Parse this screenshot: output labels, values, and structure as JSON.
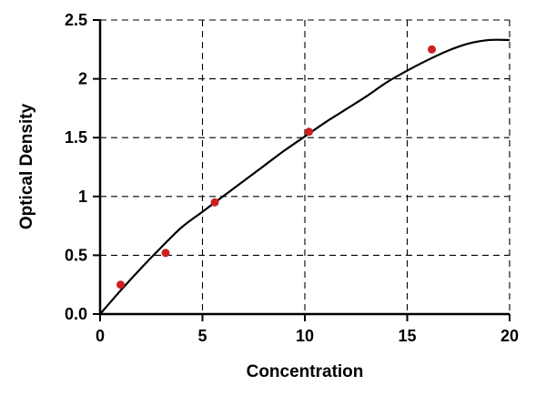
{
  "chart_data": {
    "type": "scatter",
    "title": "",
    "xlabel": "Concentration",
    "ylabel": "Optical Density",
    "xlim": [
      0,
      20
    ],
    "ylim": [
      0,
      2.5
    ],
    "grid": true,
    "grid_style": "dashed",
    "x_tick_values": [
      0,
      5,
      10,
      15,
      20
    ],
    "x_tick_labels": [
      "0",
      "5",
      "10",
      "15",
      "20"
    ],
    "y_tick_values": [
      0,
      0.5,
      1,
      1.5,
      2,
      2.5
    ],
    "y_tick_labels": [
      "0.0",
      "0.5",
      "1",
      "1.5",
      "2",
      "2.5"
    ],
    "points": {
      "name": "standards",
      "color": "#cc2020",
      "x": [
        1.0,
        3.2,
        5.6,
        10.2,
        16.2
      ],
      "y": [
        0.25,
        0.52,
        0.95,
        1.55,
        2.25
      ]
    },
    "fit_curve": {
      "name": "fitted-curve",
      "color": "#000000",
      "x": [
        0,
        1,
        2,
        3,
        4,
        5,
        6,
        7,
        8,
        9,
        10,
        11,
        12,
        13,
        14,
        15,
        16,
        17,
        18,
        19,
        20
      ],
      "y": [
        0.0,
        0.2,
        0.39,
        0.57,
        0.74,
        0.87,
        1.0,
        1.13,
        1.26,
        1.39,
        1.51,
        1.63,
        1.74,
        1.85,
        1.97,
        2.07,
        2.16,
        2.24,
        2.3,
        2.33,
        2.33
      ]
    },
    "legend": null
  },
  "colors": {
    "axis": "#000000",
    "grid": "#000000",
    "point": "#cc2020",
    "curve": "#000000",
    "background": "#ffffff"
  }
}
